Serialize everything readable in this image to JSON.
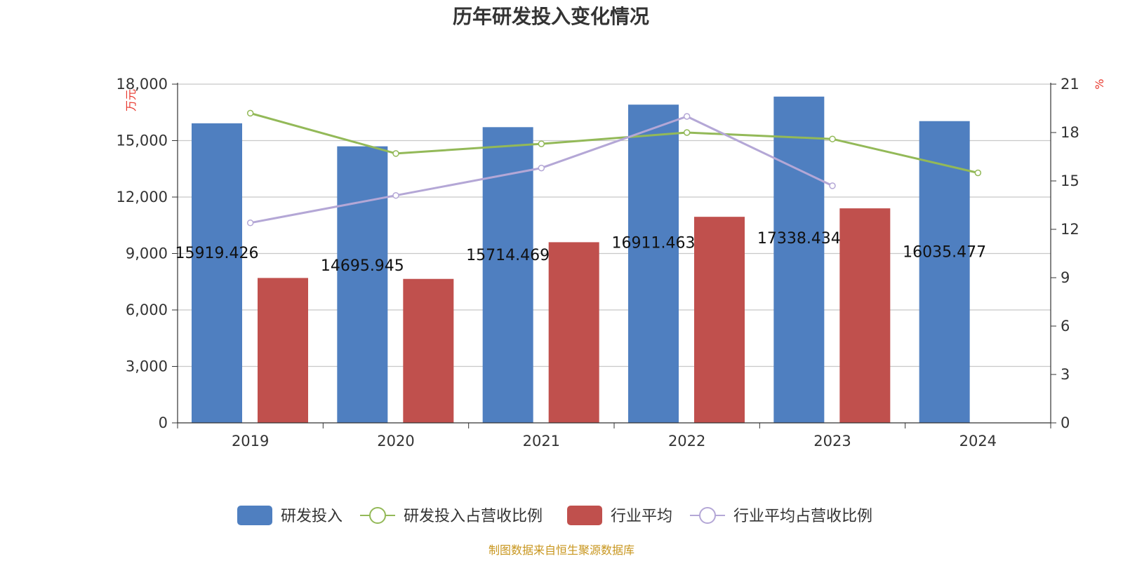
{
  "chart_data": {
    "type": "bar",
    "title": "历年研发投入变化情况",
    "categories": [
      "2019",
      "2020",
      "2021",
      "2022",
      "2023",
      "2024"
    ],
    "left_axis": {
      "unit": "万元",
      "ylim": [
        0,
        18000
      ],
      "ticks": [
        "0",
        "3,000",
        "6,000",
        "9,000",
        "12,000",
        "15,000",
        "18,000"
      ],
      "tick_values": [
        0,
        3000,
        6000,
        9000,
        12000,
        15000,
        18000
      ]
    },
    "right_axis": {
      "unit": "%",
      "ylim": [
        0,
        21
      ],
      "ticks": [
        "0",
        "3",
        "6",
        "9",
        "12",
        "15",
        "18",
        "21"
      ],
      "tick_values": [
        0,
        3,
        6,
        9,
        12,
        15,
        18,
        21
      ]
    },
    "grid": true,
    "legend_position": "bottom",
    "series": [
      {
        "name": "研发投入",
        "type": "bar",
        "axis": "left",
        "color": "#4f7fc0",
        "values": [
          15919.426,
          14695.945,
          15714.469,
          16911.463,
          17338.434,
          16035.477
        ],
        "labels": [
          "15919.426",
          "14695.945",
          "15714.469",
          "16911.463",
          "17338.434",
          "16035.477"
        ]
      },
      {
        "name": "研发投入占营收比例",
        "type": "line",
        "axis": "right",
        "color": "#93b958",
        "values": [
          19.2,
          16.7,
          17.3,
          18.0,
          17.6,
          15.5
        ]
      },
      {
        "name": "行业平均",
        "type": "bar",
        "axis": "left",
        "color": "#c0504d",
        "values": [
          7700,
          7650,
          9600,
          10950,
          11400,
          null
        ]
      },
      {
        "name": "行业平均占营收比例",
        "type": "line",
        "axis": "right",
        "color": "#b4a7d6",
        "values": [
          12.4,
          14.1,
          15.8,
          19.0,
          14.7,
          null
        ]
      }
    ],
    "source": "制图数据来自恒生聚源数据库"
  }
}
